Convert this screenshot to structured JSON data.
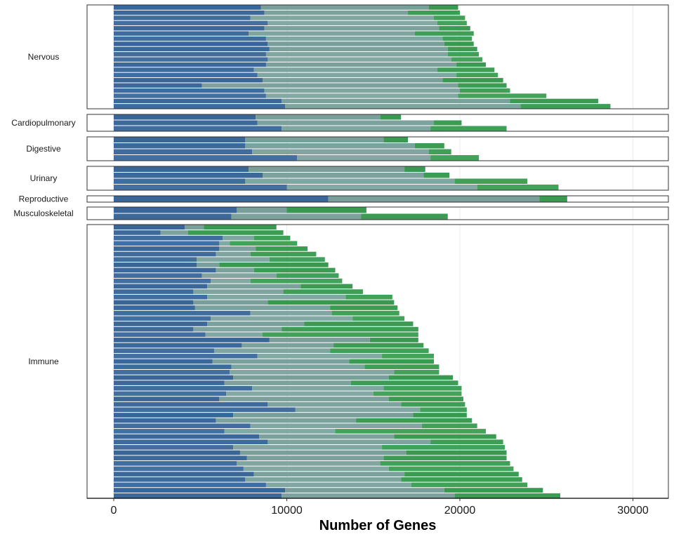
{
  "chart_data": {
    "type": "bar",
    "orientation": "horizontal",
    "stacked": true,
    "faceted": true,
    "xlabel": "Number of Genes",
    "xlim": [
      -1500,
      32000
    ],
    "xticks": [
      0,
      10000,
      20000,
      30000
    ],
    "xtick_labels": [
      "0",
      "10000",
      "20000",
      "30000"
    ],
    "grid": "vertical major lines only",
    "legend": "none",
    "segment_colors": {
      "first": "#3f6b9c",
      "second": "#7fa39e",
      "third": "#3f9e55"
    },
    "panels": [
      {
        "name": "Nervous",
        "bars": [
          [
            8500,
            18200,
            19900
          ],
          [
            8700,
            17000,
            20000
          ],
          [
            7900,
            18500,
            20300
          ],
          [
            8900,
            18700,
            20400
          ],
          [
            8700,
            18800,
            20600
          ],
          [
            7800,
            17400,
            20800
          ],
          [
            8800,
            19000,
            20700
          ],
          [
            8900,
            19100,
            20800
          ],
          [
            9000,
            19300,
            21000
          ],
          [
            8800,
            19300,
            21100
          ],
          [
            8900,
            19500,
            21300
          ],
          [
            8800,
            19800,
            21500
          ],
          [
            8100,
            18700,
            22000
          ],
          [
            8300,
            19800,
            22200
          ],
          [
            8600,
            19000,
            22500
          ],
          [
            5100,
            19900,
            22700
          ],
          [
            8700,
            20000,
            22900
          ],
          [
            8800,
            19900,
            25000
          ],
          [
            9700,
            22900,
            28000
          ],
          [
            9900,
            23500,
            28700
          ]
        ]
      },
      {
        "name": "Cardiopulmonary",
        "bars": [
          [
            8200,
            15400,
            16600
          ],
          [
            8300,
            18500,
            20100
          ],
          [
            9700,
            18300,
            22700
          ]
        ]
      },
      {
        "name": "Digestive",
        "bars": [
          [
            7600,
            15600,
            17000
          ],
          [
            7600,
            17400,
            19100
          ],
          [
            8000,
            18200,
            19500
          ],
          [
            10600,
            18300,
            21100
          ]
        ]
      },
      {
        "name": "Urinary",
        "bars": [
          [
            7800,
            16800,
            18000
          ],
          [
            8600,
            17900,
            19400
          ],
          [
            7600,
            19700,
            23900
          ],
          [
            10000,
            21000,
            25700
          ]
        ]
      },
      {
        "name": "Reproductive",
        "bars": [
          [
            12400,
            24600,
            26200
          ]
        ]
      },
      {
        "name": "Musculoskeletal",
        "bars": [
          [
            7100,
            10000,
            14600
          ],
          [
            6800,
            14300,
            19300
          ]
        ]
      },
      {
        "name": "Immune",
        "bars": [
          [
            4100,
            5200,
            9400
          ],
          [
            2700,
            4300,
            9800
          ],
          [
            6300,
            8100,
            10200
          ],
          [
            6100,
            6700,
            10600
          ],
          [
            6100,
            8200,
            11200
          ],
          [
            5900,
            7900,
            11700
          ],
          [
            4800,
            9000,
            12200
          ],
          [
            4800,
            6100,
            12400
          ],
          [
            5900,
            8100,
            12800
          ],
          [
            5100,
            9400,
            13000
          ],
          [
            5600,
            7900,
            13200
          ],
          [
            5400,
            10800,
            13800
          ],
          [
            4600,
            9800,
            14400
          ],
          [
            5400,
            13400,
            16100
          ],
          [
            4600,
            8900,
            16200
          ],
          [
            4700,
            12500,
            16400
          ],
          [
            7900,
            12600,
            16500
          ],
          [
            5600,
            13800,
            16800
          ],
          [
            5400,
            11000,
            17300
          ],
          [
            4600,
            9700,
            17600
          ],
          [
            5300,
            8600,
            17600
          ],
          [
            9000,
            14800,
            17600
          ],
          [
            7400,
            12700,
            17900
          ],
          [
            5800,
            12500,
            18200
          ],
          [
            8300,
            15500,
            18500
          ],
          [
            5700,
            13600,
            18500
          ],
          [
            6800,
            14500,
            18800
          ],
          [
            6700,
            16200,
            18800
          ],
          [
            6900,
            15900,
            19600
          ],
          [
            6400,
            13700,
            19900
          ],
          [
            8000,
            15600,
            20100
          ],
          [
            6500,
            15000,
            20100
          ],
          [
            6100,
            15900,
            20200
          ],
          [
            8900,
            16600,
            20300
          ],
          [
            10500,
            17700,
            20400
          ],
          [
            6900,
            17300,
            20400
          ],
          [
            5900,
            14000,
            20700
          ],
          [
            7900,
            17800,
            21000
          ],
          [
            6400,
            12800,
            21500
          ],
          [
            8400,
            16200,
            22100
          ],
          [
            8900,
            18300,
            22500
          ],
          [
            6900,
            15500,
            22600
          ],
          [
            7300,
            16900,
            22700
          ],
          [
            7700,
            15600,
            22700
          ],
          [
            7100,
            15400,
            22900
          ],
          [
            7500,
            15900,
            23100
          ],
          [
            8100,
            16800,
            23400
          ],
          [
            7600,
            16600,
            23600
          ],
          [
            8800,
            17200,
            23900
          ],
          [
            9900,
            19100,
            24800
          ],
          [
            9700,
            19700,
            25800
          ]
        ]
      }
    ]
  }
}
